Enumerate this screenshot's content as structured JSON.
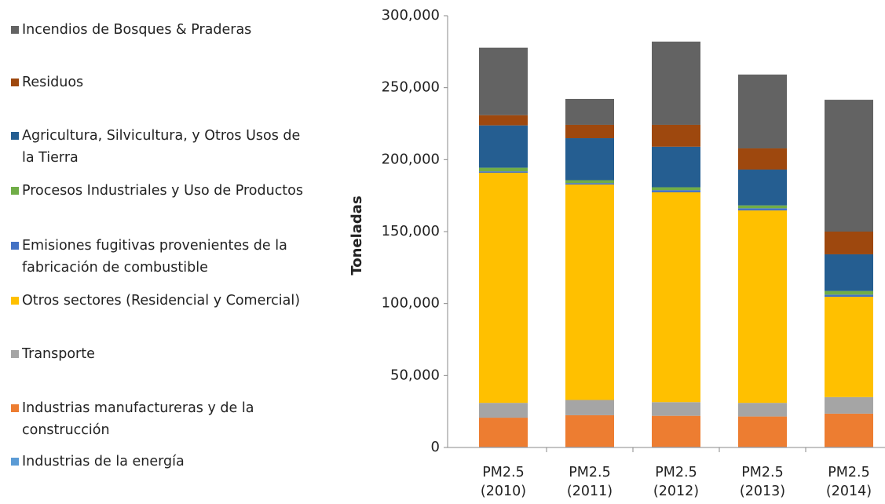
{
  "chart_data": {
    "type": "stacked_bar",
    "y_label": "Toneladas",
    "categories": [
      "PM2.5 (2010)",
      "PM2.5 (2011)",
      "PM2.5 (2012)",
      "PM2.5 (2013)",
      "PM2.5 (2014)"
    ],
    "ylim": [
      0,
      300000
    ],
    "yticks": [
      0,
      {
        "value": 50000,
        "label": "50,000"
      },
      {
        "value": 100000,
        "label": "100,000"
      },
      {
        "value": 150000,
        "label": "150,000"
      },
      {
        "value": 200000,
        "label": "200,000"
      },
      {
        "value": 250000,
        "label": "250,000"
      },
      {
        "value": 300000,
        "label": "300,000"
      }
    ],
    "series": [
      {
        "name": "Industrias de la energía",
        "color": "#5b9bd5",
        "values": [
          300,
          300,
          300,
          300,
          300
        ]
      },
      {
        "name": "Industrias manufactureras y de la construcción",
        "color": "#ed7d31",
        "values": [
          20400,
          22100,
          21700,
          21200,
          23200
        ]
      },
      {
        "name": "Transporte",
        "color": "#a5a5a5",
        "values": [
          10300,
          10600,
          9500,
          9500,
          11500
        ]
      },
      {
        "name": "Otros sectores (Residencial y Comercial)",
        "color": "#ffc000",
        "values": [
          159900,
          149700,
          145800,
          133700,
          69700
        ]
      },
      {
        "name": "Emisiones fugitivas provenientes de la fabricación de combustible",
        "color": "#4472c4",
        "values": [
          1000,
          1000,
          1500,
          1500,
          1500
        ]
      },
      {
        "name": "Procesos Industriales y Uso de Productos",
        "color": "#70ad47",
        "values": [
          2500,
          2000,
          2000,
          2000,
          2500
        ]
      },
      {
        "name": "Agricultura, Silvicultura, y Otros Usos de la Tierra",
        "color": "#255e91",
        "values": [
          29400,
          29200,
          28200,
          24900,
          25500
        ]
      },
      {
        "name": "Residuos",
        "color": "#9e480e",
        "values": [
          7100,
          9300,
          15200,
          14700,
          15800
        ]
      },
      {
        "name": "Incendios de Bosques & Praderas",
        "color": "#636363",
        "values": [
          46900,
          18000,
          57800,
          51300,
          91600
        ]
      }
    ]
  }
}
